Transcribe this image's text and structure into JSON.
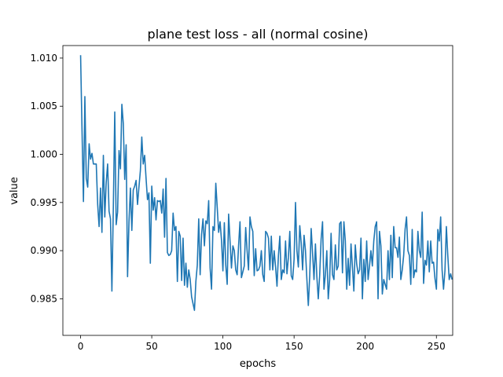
{
  "chart_data": {
    "type": "line",
    "title": "plane test loss - all (normal cosine)",
    "xlabel": "epochs",
    "ylabel": "value",
    "xlim": [
      -12.45,
      261.45
    ],
    "ylim": [
      0.9812,
      1.0113
    ],
    "xticks": [
      0,
      50,
      100,
      150,
      200,
      250
    ],
    "xtick_labels": [
      "0",
      "50",
      "100",
      "150",
      "200",
      "250"
    ],
    "yticks": [
      0.985,
      0.99,
      0.995,
      1.0,
      1.005,
      1.01
    ],
    "ytick_labels": [
      "0.985",
      "0.990",
      "0.995",
      "1.000",
      "1.005",
      "1.010"
    ],
    "grid": false,
    "series": [
      {
        "color": "#1f77b4",
        "x_start": 0,
        "x_step": 1,
        "values": [
          1.0103,
          1.0025,
          0.9951,
          1.006,
          0.9975,
          0.9966,
          1.0011,
          0.9995,
          1.0001,
          0.999,
          0.999,
          0.999,
          0.9948,
          0.9925,
          0.9965,
          0.9919,
          0.9999,
          0.9935,
          0.9971,
          0.999,
          0.9941,
          0.9933,
          0.9858,
          0.9945,
          1.0044,
          0.9927,
          0.994,
          1.0004,
          0.9985,
          1.0052,
          1.0032,
          0.9974,
          1.001,
          0.9873,
          0.993,
          0.9965,
          0.9921,
          0.9963,
          0.9967,
          0.9973,
          0.9948,
          0.9966,
          0.9983,
          1.0018,
          0.999,
          0.9999,
          0.9975,
          0.9953,
          0.996,
          0.9887,
          0.9967,
          0.9942,
          0.9955,
          0.9932,
          0.9952,
          0.9951,
          0.9952,
          0.9939,
          0.9964,
          0.9914,
          0.9975,
          0.9898,
          0.9895,
          0.9896,
          0.99,
          0.9939,
          0.9921,
          0.9925,
          0.9868,
          0.992,
          0.9915,
          0.9869,
          0.9913,
          0.9864,
          0.9887,
          0.9862,
          0.988,
          0.987,
          0.9852,
          0.9845,
          0.9838,
          0.9868,
          0.9885,
          0.9933,
          0.9875,
          0.9917,
          0.9933,
          0.9905,
          0.9931,
          0.9928,
          0.9952,
          0.9882,
          0.986,
          0.9925,
          0.9921,
          0.997,
          0.9945,
          0.9919,
          0.993,
          0.9911,
          0.9879,
          0.9929,
          0.9885,
          0.9865,
          0.9938,
          0.991,
          0.9882,
          0.9905,
          0.99,
          0.988,
          0.9875,
          0.9905,
          0.993,
          0.9872,
          0.9878,
          0.9884,
          0.9924,
          0.99,
          0.988,
          0.9935,
          0.9925,
          0.992,
          0.9874,
          0.9902,
          0.9879,
          0.988,
          0.9884,
          0.99,
          0.9875,
          0.9868,
          0.992,
          0.9918,
          0.9913,
          0.988,
          0.9915,
          0.988,
          0.99,
          0.9883,
          0.9863,
          0.9895,
          0.9915,
          0.987,
          0.988,
          0.9877,
          0.991,
          0.9876,
          0.9893,
          0.992,
          0.9874,
          0.987,
          0.9891,
          0.995,
          0.99,
          0.9883,
          0.9926,
          0.9908,
          0.988,
          0.9916,
          0.99,
          0.987,
          0.9843,
          0.9874,
          0.9923,
          0.9897,
          0.987,
          0.9907,
          0.9873,
          0.985,
          0.9875,
          0.9912,
          0.993,
          0.986,
          0.9875,
          0.99,
          0.985,
          0.987,
          0.9918,
          0.9875,
          0.987,
          0.9906,
          0.988,
          0.9884,
          0.9928,
          0.993,
          0.9877,
          0.993,
          0.991,
          0.986,
          0.9892,
          0.9864,
          0.9907,
          0.9883,
          0.9858,
          0.9906,
          0.9886,
          0.9876,
          0.988,
          0.9913,
          0.985,
          0.9891,
          0.9868,
          0.991,
          0.987,
          0.9884,
          0.99,
          0.9884,
          0.991,
          0.9925,
          0.993,
          0.985,
          0.992,
          0.9905,
          0.9855,
          0.987,
          0.9865,
          0.986,
          0.99,
          0.987,
          0.9916,
          0.9872,
          0.9925,
          0.9903,
          0.9903,
          0.9893,
          0.9914,
          0.987,
          0.988,
          0.9895,
          0.9922,
          0.9935,
          0.99,
          0.9895,
          0.9865,
          0.9922,
          0.9872,
          0.988,
          0.9878,
          0.992,
          0.99,
          0.9893,
          0.994,
          0.9866,
          0.989,
          0.9885,
          0.991,
          0.9878,
          0.991,
          0.9887,
          0.9888,
          0.9871,
          0.986,
          0.9922,
          0.991,
          0.9935,
          0.988,
          0.986,
          0.9879,
          0.9925,
          0.9895,
          0.987,
          0.9876,
          0.987
        ]
      }
    ]
  }
}
